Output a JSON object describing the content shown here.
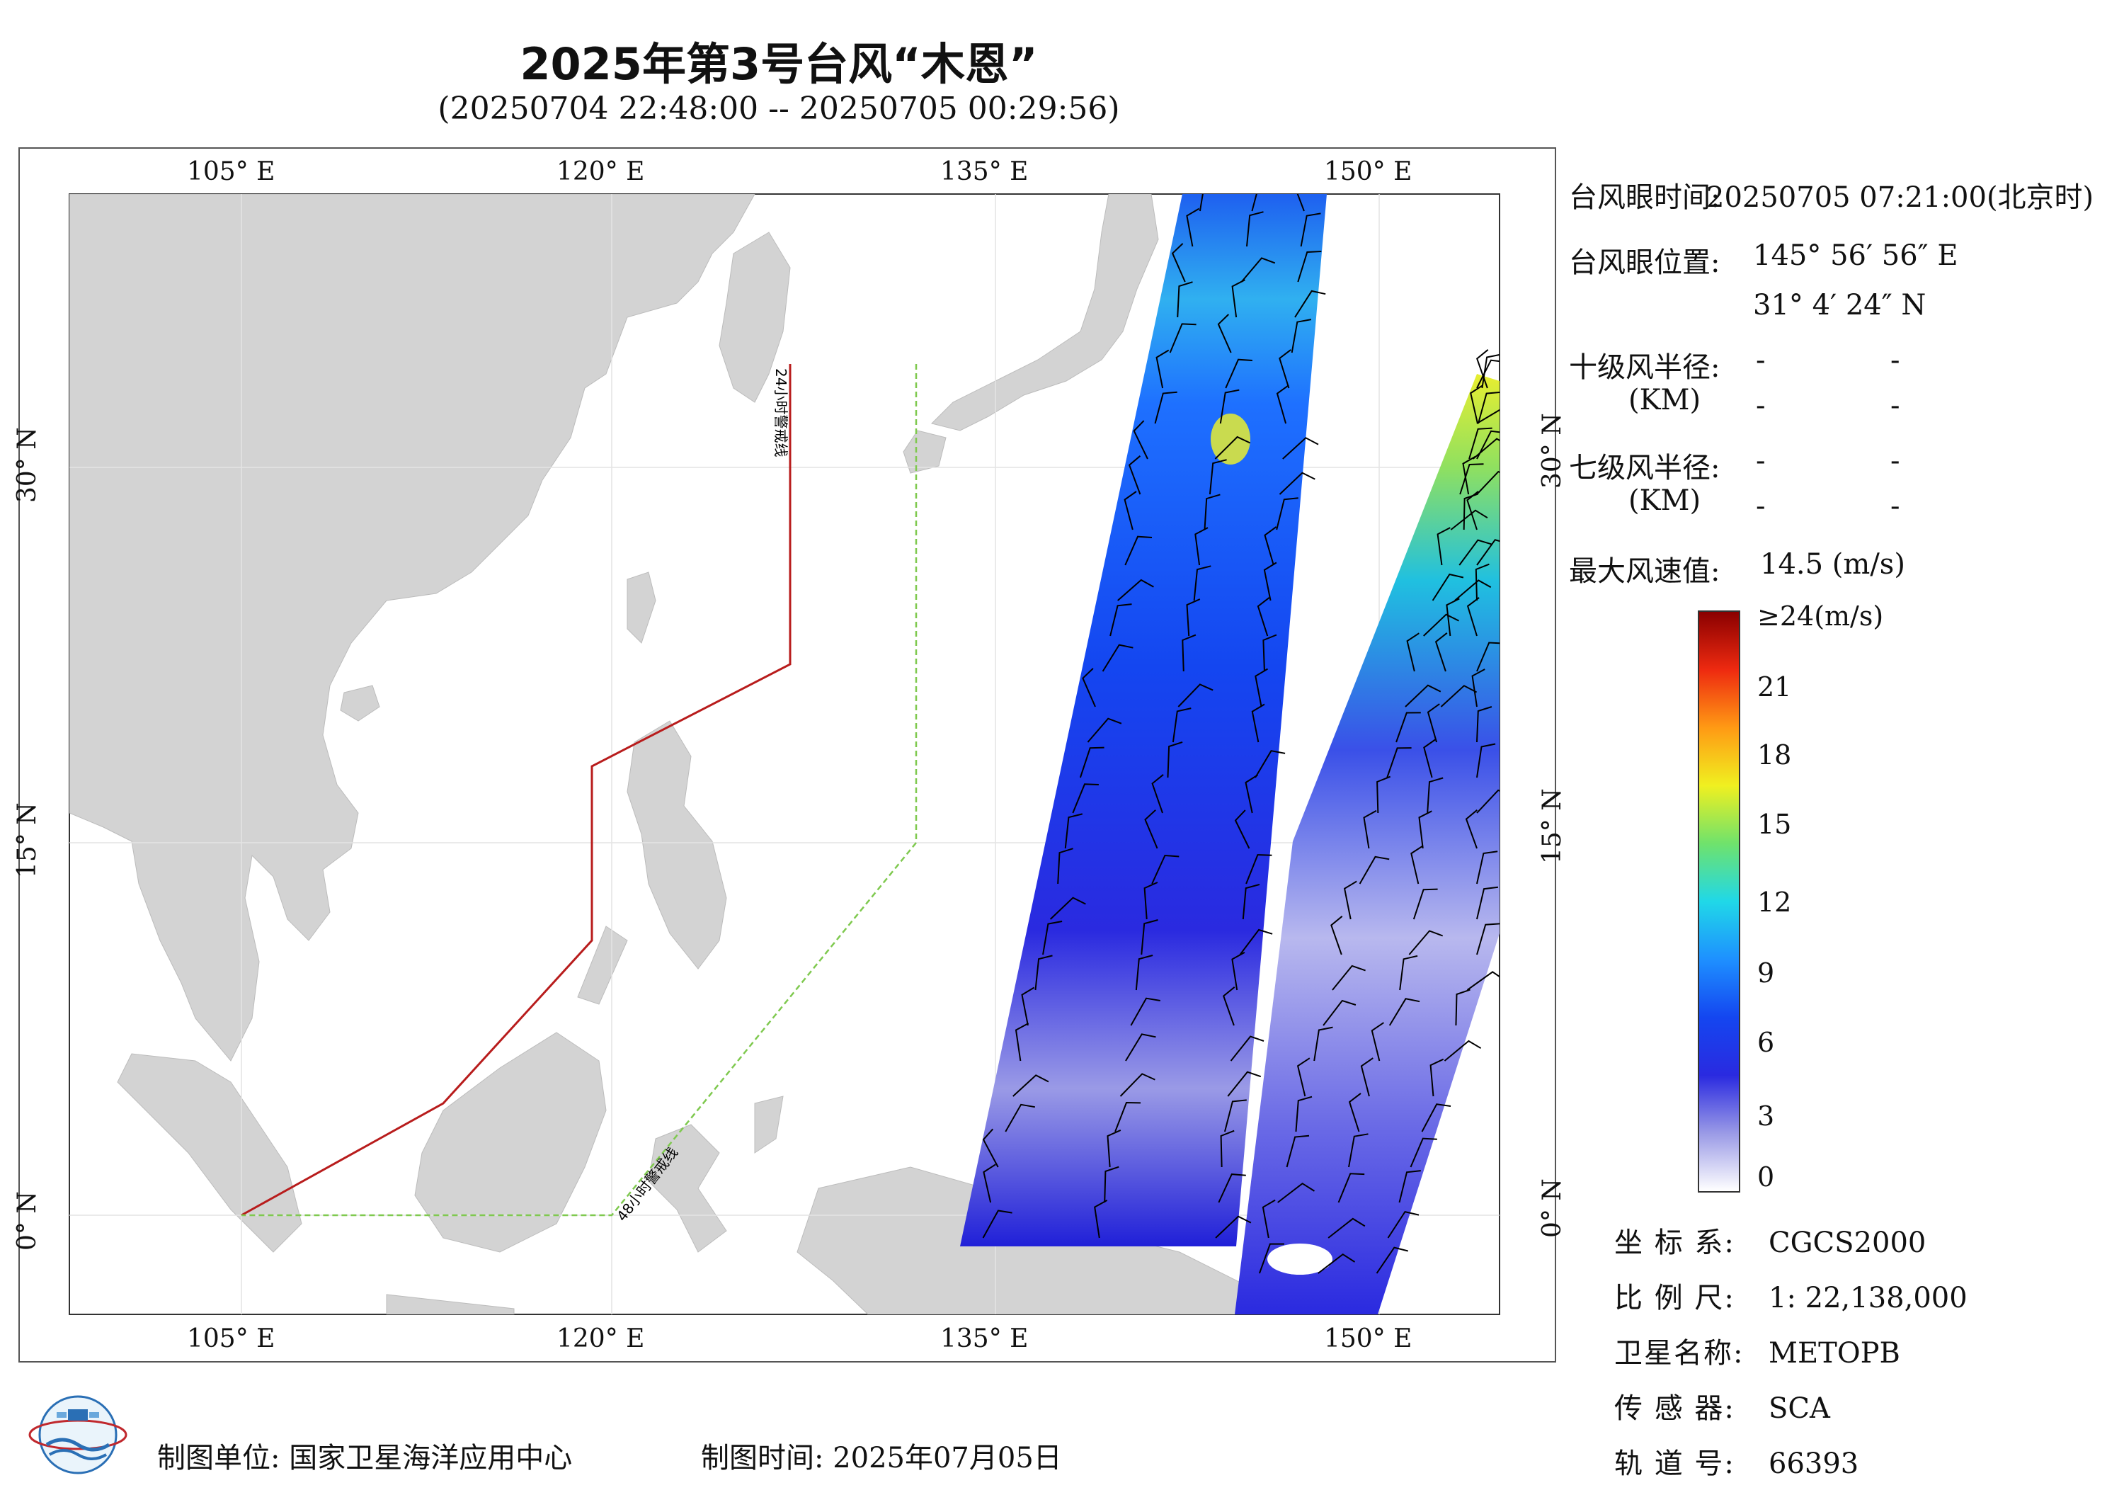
{
  "title": "2025年第3号台风“木恩”",
  "subtitle": "(20250704 22:48:00 -- 20250705 00:29:56)",
  "axes": {
    "top_lon": [
      "105° E",
      "120° E",
      "135° E",
      "150° E"
    ],
    "bottom_lon": [
      "105° E",
      "120° E",
      "135° E",
      "150° E"
    ],
    "lat": [
      "30° N",
      "15° N",
      "0° N"
    ]
  },
  "warning_lines": {
    "line_24h": "24小时警戒线",
    "line_48h": "48小时警戒线",
    "color_24h": "#b81c1c",
    "color_48h": "#7fc94f"
  },
  "info": {
    "eye_time_label": "台风眼时间:",
    "eye_time_value": "20250705 07:21:00(北京时)",
    "eye_pos_label": "台风眼位置:",
    "eye_lon": "145° 56′ 56″ E",
    "eye_lat": "31° 4′ 24″ N",
    "r10_label": "十级风半径:",
    "r7_label": "七级风半径:",
    "km_label": "(KM)",
    "dash": "-",
    "max_wind_label": "最大风速值:",
    "max_wind_value": "14.5 (m/s)"
  },
  "colorbar": {
    "labels": [
      "≥24(m/s)",
      "21",
      "18",
      "15",
      "12",
      "9",
      "6",
      "3",
      "0"
    ],
    "colors": [
      "#ffffff",
      "#9a9ae6",
      "#2a2ae0",
      "#1446f0",
      "#1e90ff",
      "#20d8e8",
      "#6fe26c",
      "#f0f020",
      "#ff9a14",
      "#ee2a10",
      "#8a0000"
    ]
  },
  "meta": {
    "crs_label": "坐 标 系:",
    "crs_value": "CGCS2000",
    "scale_label": "比 例 尺:",
    "scale_value": "1: 22,138,000",
    "sat_label": "卫星名称:",
    "sat_value": "METOPB",
    "sensor_label": "传 感 器:",
    "sensor_value": "SCA",
    "orbit_label": "轨 道 号:",
    "orbit_value": "66393"
  },
  "footer": {
    "unit": "制图单位: 国家卫星海洋应用中心",
    "time": "制图时间: 2025年07月05日"
  }
}
